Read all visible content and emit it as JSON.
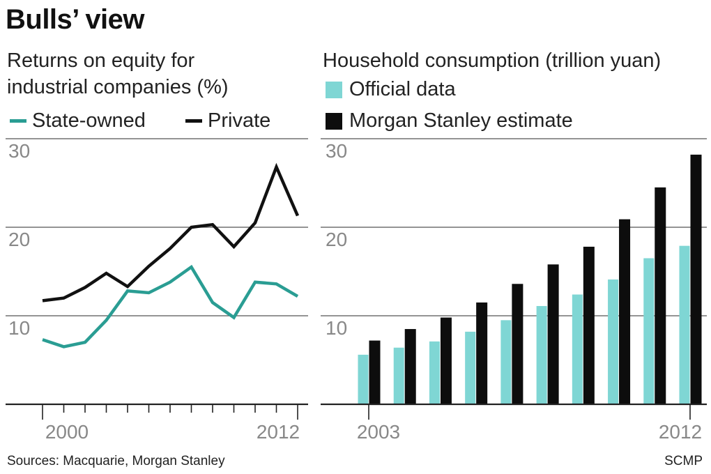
{
  "title": "Bulls’ view",
  "colors": {
    "state": "#2a9d93",
    "private": "#111111",
    "official": "#7fd6d4",
    "estimate": "#0d0d0d",
    "grid": "#555555",
    "tick_label": "#888888"
  },
  "left": {
    "subtitle_line1": "Returns on equity for",
    "subtitle_line2": "industrial companies (%)",
    "legend": {
      "state": "State-owned",
      "private": "Private"
    }
  },
  "right": {
    "subtitle": "Household consumption (trillion yuan)",
    "legend": {
      "official": "Official data",
      "estimate": "Morgan Stanley estimate"
    }
  },
  "footer": {
    "sources": "Sources: Macquarie, Morgan Stanley",
    "credit": "SCMP"
  },
  "chart_data": [
    {
      "type": "line",
      "title": "Returns on equity for industrial companies (%)",
      "x": [
        2000,
        2001,
        2002,
        2003,
        2004,
        2005,
        2006,
        2007,
        2008,
        2009,
        2010,
        2011,
        2012
      ],
      "series": [
        {
          "name": "State-owned",
          "values": [
            7.3,
            6.5,
            7.0,
            9.5,
            12.8,
            12.6,
            13.8,
            15.5,
            11.5,
            9.8,
            13.8,
            13.6,
            12.2
          ]
        },
        {
          "name": "Private",
          "values": [
            11.7,
            12.0,
            13.2,
            14.8,
            13.3,
            15.6,
            17.6,
            20.0,
            20.3,
            17.8,
            20.5,
            26.8,
            21.3
          ]
        }
      ],
      "ylim": [
        0,
        30
      ],
      "yticks": [
        10,
        20,
        30
      ],
      "ytick_labels": [
        "10",
        "20",
        "30"
      ],
      "xtick_labels": [
        "2000",
        "2012"
      ],
      "grid": true
    },
    {
      "type": "bar",
      "title": "Household consumption (trillion yuan)",
      "categories": [
        "2003",
        "2004",
        "2005",
        "2006",
        "2007",
        "2008",
        "2009",
        "2010",
        "2011",
        "2012"
      ],
      "series": [
        {
          "name": "Official data",
          "values": [
            5.6,
            6.4,
            7.1,
            8.2,
            9.5,
            11.1,
            12.4,
            14.1,
            16.5,
            17.9
          ]
        },
        {
          "name": "Morgan Stanley estimate",
          "values": [
            7.2,
            8.5,
            9.8,
            11.5,
            13.6,
            15.8,
            17.8,
            20.9,
            24.5,
            28.2
          ]
        }
      ],
      "ylim": [
        0,
        30
      ],
      "yticks": [
        10,
        20,
        30
      ],
      "ytick_labels": [
        "10",
        "20",
        "30"
      ],
      "xtick_labels": [
        "2003",
        "2012"
      ],
      "grid": true
    }
  ]
}
